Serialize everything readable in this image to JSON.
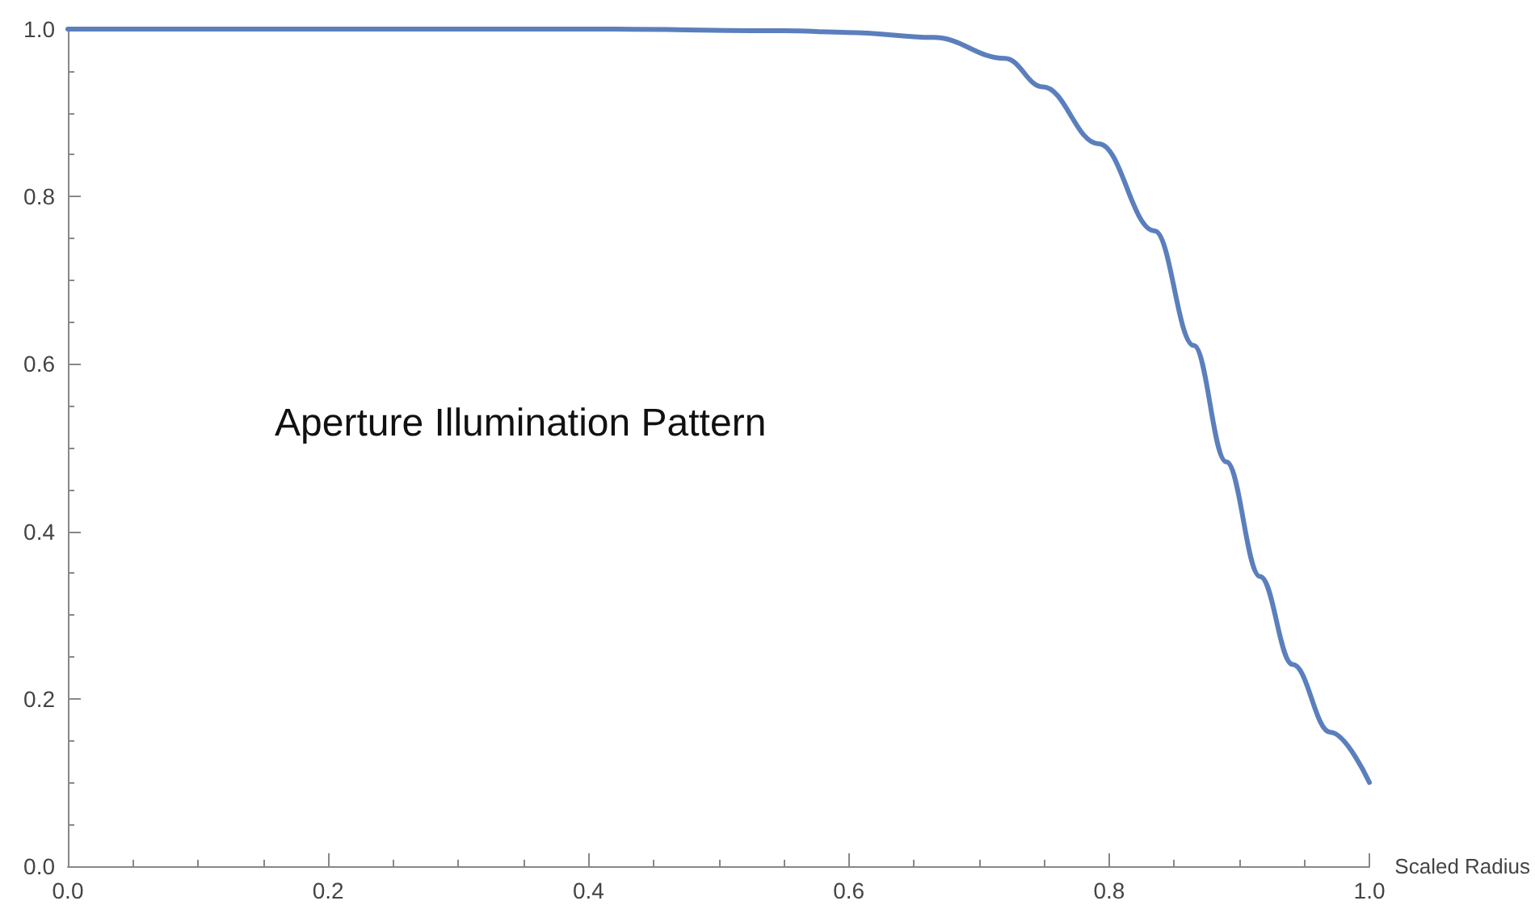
{
  "chart_data": {
    "type": "line",
    "title": "Aperture Illumination Pattern",
    "xlabel": "Scaled Radius",
    "xlim": [
      0,
      1
    ],
    "ylim": [
      0,
      1
    ],
    "xticks": [
      {
        "value": 0,
        "label": "0.0"
      },
      {
        "value": 0.2,
        "label": "0.2"
      },
      {
        "value": 0.4,
        "label": "0.4"
      },
      {
        "value": 0.6,
        "label": "0.6"
      },
      {
        "value": 0.8,
        "label": "0.8"
      },
      {
        "value": 1,
        "label": "1.0"
      }
    ],
    "yticks": [
      {
        "value": 0,
        "label": "0.0"
      },
      {
        "value": 0.2,
        "label": "0.2"
      },
      {
        "value": 0.4,
        "label": "0.4"
      },
      {
        "value": 0.6,
        "label": "0.6"
      },
      {
        "value": 0.8,
        "label": "0.8"
      },
      {
        "value": 1,
        "label": "1.0"
      }
    ],
    "grid": false,
    "marker": "none",
    "line_style": "solid",
    "series": [
      {
        "color": "#5b7fbd",
        "x": [
          0,
          0.2,
          0.4,
          0.55,
          0.6,
          0.665,
          0.72,
          0.749,
          0.792,
          0.835,
          0.865,
          0.89,
          0.916,
          0.941,
          0.97,
          1.0
        ],
        "values": [
          1,
          1,
          1,
          0.998,
          0.996,
          0.99,
          0.965,
          0.931,
          0.863,
          0.759,
          0.622,
          0.483,
          0.346,
          0.241,
          0.16,
          0.1
        ]
      }
    ]
  }
}
